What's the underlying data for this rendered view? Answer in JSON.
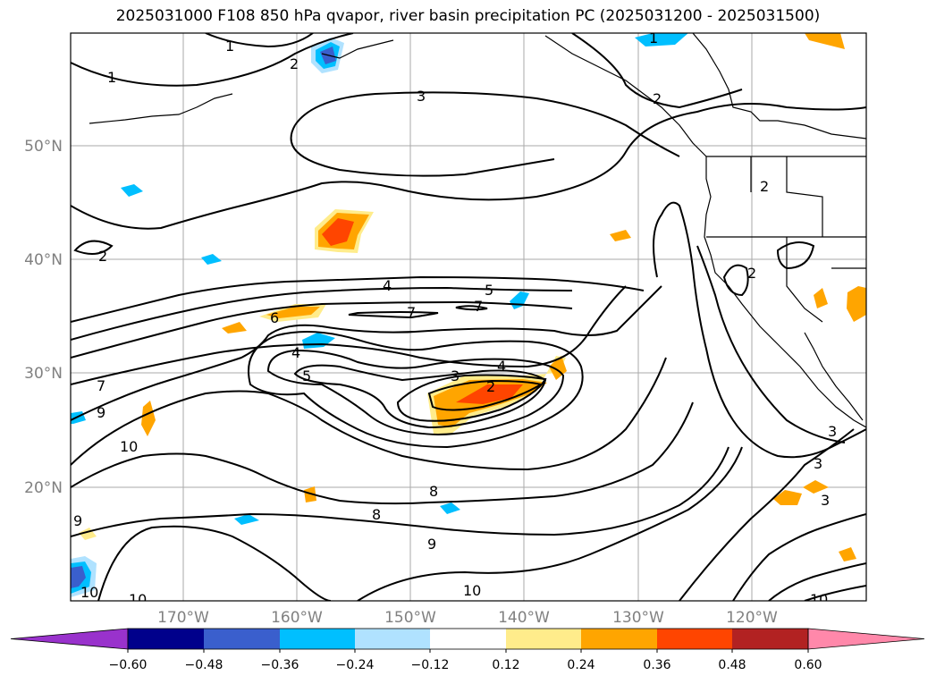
{
  "title": "2025031000 F108 850 hPa qvapor, river basin precipitation PC (2025031200 - 2025031500)",
  "axes": {
    "lat_labels": [
      "50°N",
      "40°N",
      "30°N",
      "20°N"
    ],
    "lon_labels": [
      "170°W",
      "160°W",
      "150°W",
      "140°W",
      "130°W",
      "120°W"
    ]
  },
  "contour_labels": [
    "1",
    "1",
    "2",
    "2",
    "3",
    "1",
    "2",
    "2",
    "2",
    "4",
    "5",
    "6",
    "7",
    "7",
    "4",
    "5",
    "3",
    "4",
    "2",
    "7",
    "9",
    "10",
    "3",
    "3",
    "3",
    "8",
    "8",
    "9",
    "10",
    "10",
    "10",
    "9",
    "10"
  ],
  "colorbar": {
    "ticks": [
      "−0.60",
      "−0.48",
      "−0.36",
      "−0.24",
      "−0.12",
      "0.12",
      "0.24",
      "0.36",
      "0.48",
      "0.60"
    ],
    "colors": [
      "#9932cc",
      "#00008b",
      "#3a5fcd",
      "#00bfff",
      "#b0e2ff",
      "#ffffff",
      "#ffec8b",
      "#ffa500",
      "#ff4500",
      "#b22222",
      "#ff88aa"
    ]
  }
}
